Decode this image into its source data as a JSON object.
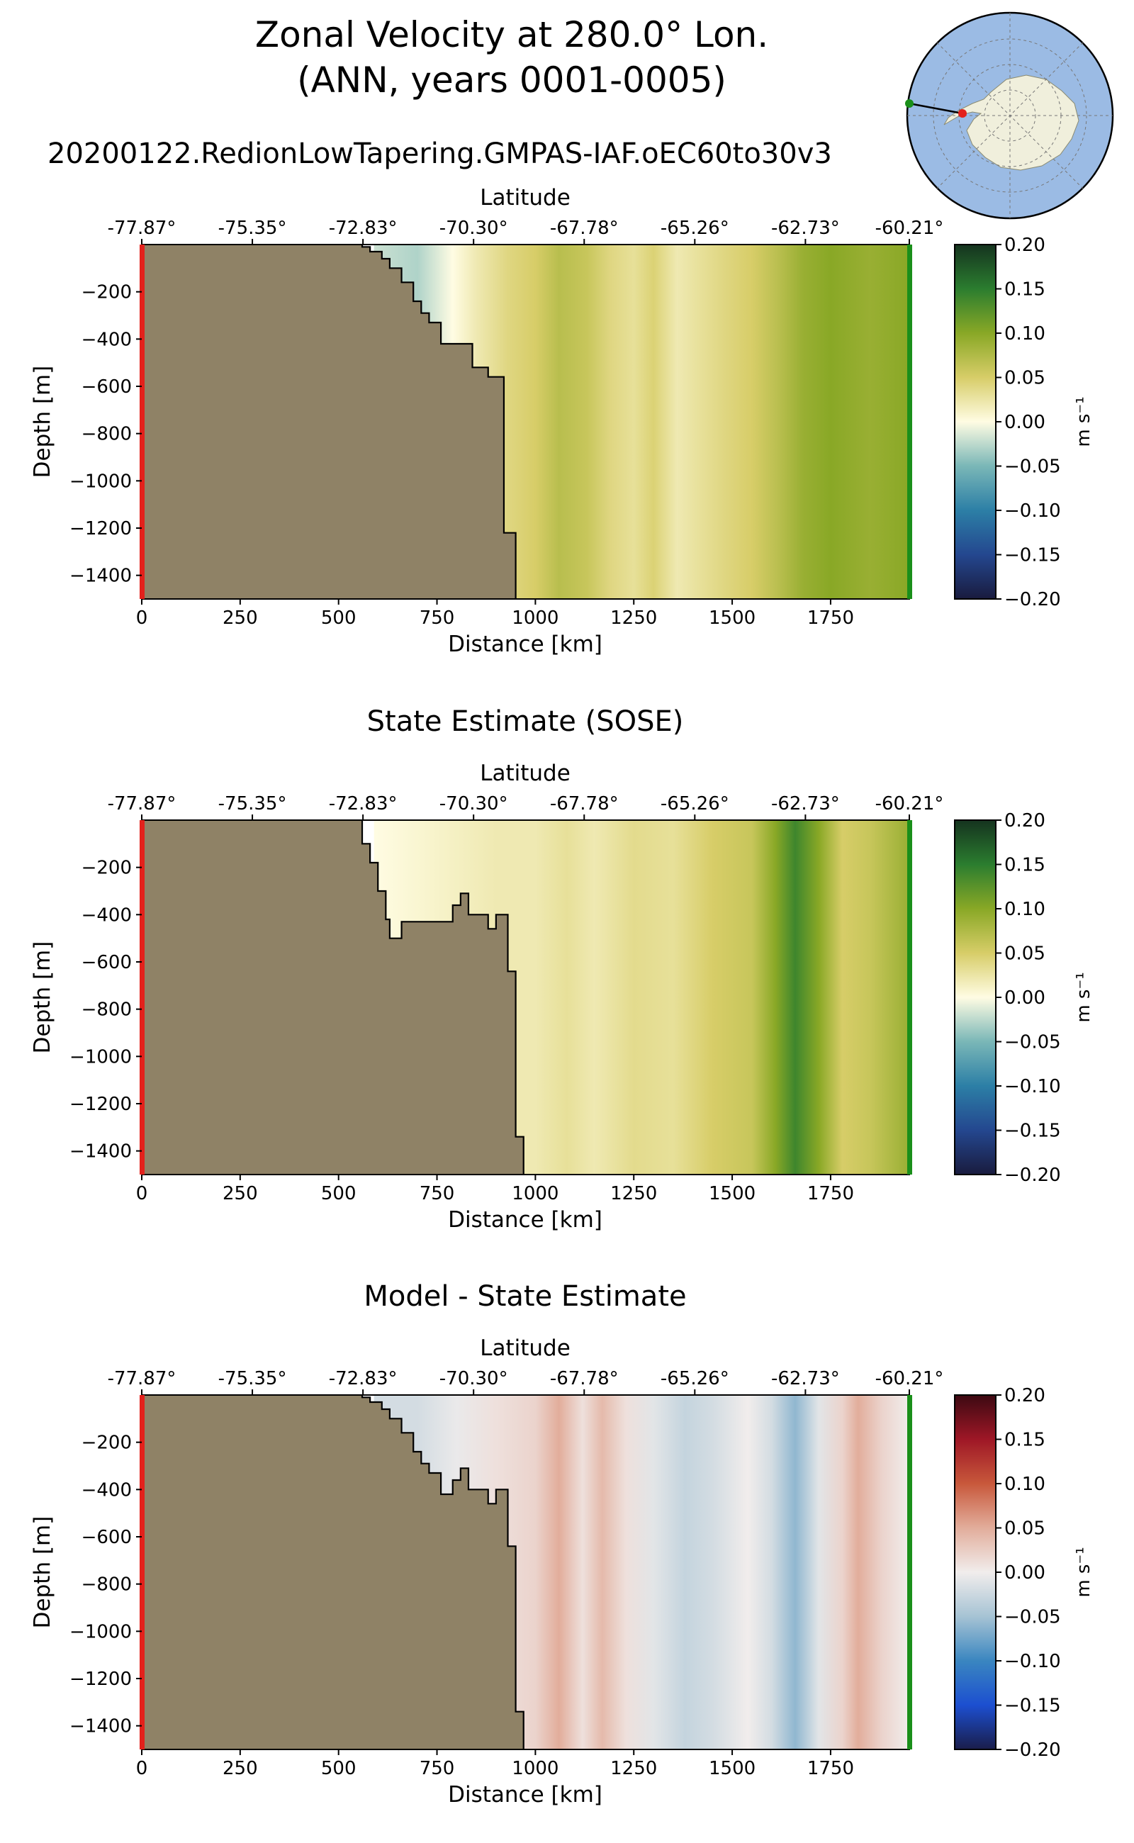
{
  "figure": {
    "title_line1": "Zonal Velocity at 280.0° Lon.",
    "title_line2": "(ANN, years 0001-0005)",
    "run_name": "20200122.RedionLowTapering.GMPAS-IAF.oEC60to30v3"
  },
  "colors": {
    "land": "#8f8266",
    "start_marker": "#e3211c",
    "end_marker": "#1a8f1a",
    "ocean": "#9bbbe4",
    "antarctica": "#f0efdc"
  },
  "chart_data": [
    {
      "type": "heatmap",
      "panel_title": "",
      "xlabel": "Distance [km]",
      "ylabel": "Depth [m]",
      "top_xlabel": "Latitude",
      "xlim": [
        0,
        1950
      ],
      "ylim": [
        -1500,
        0
      ],
      "x_ticks": [
        0,
        250,
        500,
        750,
        1000,
        1250,
        1500,
        1750
      ],
      "y_ticks": [
        -200,
        -400,
        -600,
        -800,
        -1000,
        -1200,
        -1400
      ],
      "lat_tick_distances": [
        0,
        281,
        562,
        843,
        1124,
        1405,
        1686,
        1950
      ],
      "lat_tick_labels": [
        "-77.87°",
        "-75.35°",
        "-72.83°",
        "-70.30°",
        "-67.78°",
        "-65.26°",
        "-62.73°",
        "-60.21°"
      ],
      "colormap": "speed",
      "colorbar_label": "m s⁻¹",
      "colorbar_ticks": [
        "0.20",
        "0.15",
        "0.10",
        "0.05",
        "0.00",
        "−0.05",
        "−0.10",
        "−0.15",
        "−0.20"
      ],
      "clim": [
        -0.2,
        0.2
      ],
      "bathymetry": [
        [
          560,
          0
        ],
        [
          560,
          10
        ],
        [
          580,
          10
        ],
        [
          580,
          30
        ],
        [
          610,
          30
        ],
        [
          610,
          60
        ],
        [
          630,
          60
        ],
        [
          630,
          100
        ],
        [
          660,
          100
        ],
        [
          660,
          160
        ],
        [
          690,
          160
        ],
        [
          690,
          240
        ],
        [
          710,
          240
        ],
        [
          710,
          290
        ],
        [
          730,
          290
        ],
        [
          730,
          330
        ],
        [
          760,
          330
        ],
        [
          760,
          420
        ],
        [
          840,
          420
        ],
        [
          840,
          520
        ],
        [
          880,
          520
        ],
        [
          880,
          560
        ],
        [
          920,
          560
        ],
        [
          920,
          1220
        ],
        [
          950,
          1220
        ],
        [
          950,
          1500
        ]
      ],
      "velocity_profile": [
        {
          "x": 590,
          "v": -0.02
        },
        {
          "x": 700,
          "v": -0.03
        },
        {
          "x": 790,
          "v": 0.0
        },
        {
          "x": 850,
          "v": 0.02
        },
        {
          "x": 930,
          "v": 0.04
        },
        {
          "x": 1000,
          "v": 0.05
        },
        {
          "x": 1060,
          "v": 0.07
        },
        {
          "x": 1130,
          "v": 0.06
        },
        {
          "x": 1190,
          "v": 0.04
        },
        {
          "x": 1250,
          "v": 0.03
        },
        {
          "x": 1300,
          "v": 0.045
        },
        {
          "x": 1360,
          "v": 0.02
        },
        {
          "x": 1420,
          "v": 0.03
        },
        {
          "x": 1480,
          "v": 0.04
        },
        {
          "x": 1550,
          "v": 0.05
        },
        {
          "x": 1620,
          "v": 0.07
        },
        {
          "x": 1680,
          "v": 0.09
        },
        {
          "x": 1750,
          "v": 0.1
        },
        {
          "x": 1850,
          "v": 0.09
        },
        {
          "x": 1950,
          "v": 0.1
        }
      ]
    },
    {
      "type": "heatmap",
      "panel_title": "State Estimate (SOSE)",
      "xlabel": "Distance [km]",
      "ylabel": "Depth [m]",
      "top_xlabel": "Latitude",
      "xlim": [
        0,
        1950
      ],
      "ylim": [
        -1500,
        0
      ],
      "x_ticks": [
        0,
        250,
        500,
        750,
        1000,
        1250,
        1500,
        1750
      ],
      "y_ticks": [
        -200,
        -400,
        -600,
        -800,
        -1000,
        -1200,
        -1400
      ],
      "lat_tick_distances": [
        0,
        281,
        562,
        843,
        1124,
        1405,
        1686,
        1950
      ],
      "lat_tick_labels": [
        "-77.87°",
        "-75.35°",
        "-72.83°",
        "-70.30°",
        "-67.78°",
        "-65.26°",
        "-62.73°",
        "-60.21°"
      ],
      "colormap": "speed",
      "colorbar_label": "m s⁻¹",
      "colorbar_ticks": [
        "0.20",
        "0.15",
        "0.10",
        "0.05",
        "0.00",
        "−0.05",
        "−0.10",
        "−0.15",
        "−0.20"
      ],
      "clim": [
        -0.2,
        0.2
      ],
      "bathymetry": [
        [
          560,
          0
        ],
        [
          560,
          100
        ],
        [
          580,
          100
        ],
        [
          580,
          180
        ],
        [
          600,
          180
        ],
        [
          600,
          300
        ],
        [
          620,
          300
        ],
        [
          620,
          420
        ],
        [
          630,
          420
        ],
        [
          630,
          500
        ],
        [
          660,
          500
        ],
        [
          660,
          430
        ],
        [
          790,
          430
        ],
        [
          790,
          360
        ],
        [
          810,
          360
        ],
        [
          810,
          310
        ],
        [
          830,
          310
        ],
        [
          830,
          400
        ],
        [
          880,
          400
        ],
        [
          880,
          460
        ],
        [
          900,
          460
        ],
        [
          900,
          400
        ],
        [
          930,
          400
        ],
        [
          930,
          640
        ],
        [
          950,
          640
        ],
        [
          950,
          1340
        ],
        [
          970,
          1340
        ],
        [
          970,
          1500
        ]
      ],
      "velocity_profile": [
        {
          "x": 590,
          "v": 0.0
        },
        {
          "x": 750,
          "v": 0.01
        },
        {
          "x": 900,
          "v": 0.02
        },
        {
          "x": 1000,
          "v": 0.02
        },
        {
          "x": 1080,
          "v": 0.03
        },
        {
          "x": 1150,
          "v": 0.02
        },
        {
          "x": 1250,
          "v": 0.035
        },
        {
          "x": 1350,
          "v": 0.03
        },
        {
          "x": 1450,
          "v": 0.05
        },
        {
          "x": 1550,
          "v": 0.06
        },
        {
          "x": 1610,
          "v": 0.1
        },
        {
          "x": 1660,
          "v": 0.14
        },
        {
          "x": 1720,
          "v": 0.1
        },
        {
          "x": 1780,
          "v": 0.05
        },
        {
          "x": 1850,
          "v": 0.06
        },
        {
          "x": 1950,
          "v": 0.09
        }
      ]
    },
    {
      "type": "heatmap",
      "panel_title": "Model - State Estimate",
      "xlabel": "Distance [km]",
      "ylabel": "Depth [m]",
      "top_xlabel": "Latitude",
      "xlim": [
        0,
        1950
      ],
      "ylim": [
        -1500,
        0
      ],
      "x_ticks": [
        0,
        250,
        500,
        750,
        1000,
        1250,
        1500,
        1750
      ],
      "y_ticks": [
        -200,
        -400,
        -600,
        -800,
        -1000,
        -1200,
        -1400
      ],
      "lat_tick_distances": [
        0,
        281,
        562,
        843,
        1124,
        1405,
        1686,
        1950
      ],
      "lat_tick_labels": [
        "-77.87°",
        "-75.35°",
        "-72.83°",
        "-70.30°",
        "-67.78°",
        "-65.26°",
        "-62.73°",
        "-60.21°"
      ],
      "colormap": "balance",
      "colorbar_label": "m s⁻¹",
      "colorbar_ticks": [
        "0.20",
        "0.15",
        "0.10",
        "0.05",
        "0.00",
        "−0.05",
        "−0.10",
        "−0.15",
        "−0.20"
      ],
      "clim": [
        -0.2,
        0.2
      ],
      "bathymetry": [
        [
          560,
          0
        ],
        [
          560,
          10
        ],
        [
          580,
          10
        ],
        [
          580,
          30
        ],
        [
          610,
          30
        ],
        [
          610,
          60
        ],
        [
          630,
          60
        ],
        [
          630,
          100
        ],
        [
          660,
          100
        ],
        [
          660,
          160
        ],
        [
          690,
          160
        ],
        [
          690,
          240
        ],
        [
          710,
          240
        ],
        [
          710,
          290
        ],
        [
          730,
          290
        ],
        [
          730,
          330
        ],
        [
          760,
          330
        ],
        [
          760,
          420
        ],
        [
          790,
          420
        ],
        [
          790,
          360
        ],
        [
          810,
          360
        ],
        [
          810,
          310
        ],
        [
          830,
          310
        ],
        [
          830,
          400
        ],
        [
          880,
          400
        ],
        [
          880,
          460
        ],
        [
          900,
          460
        ],
        [
          900,
          400
        ],
        [
          930,
          400
        ],
        [
          930,
          640
        ],
        [
          950,
          640
        ],
        [
          950,
          1340
        ],
        [
          970,
          1340
        ],
        [
          970,
          1500
        ]
      ],
      "velocity_profile": [
        {
          "x": 590,
          "v": -0.02
        },
        {
          "x": 700,
          "v": -0.02
        },
        {
          "x": 800,
          "v": -0.005
        },
        {
          "x": 900,
          "v": 0.01
        },
        {
          "x": 1000,
          "v": 0.02
        },
        {
          "x": 1060,
          "v": 0.05
        },
        {
          "x": 1120,
          "v": 0.01
        },
        {
          "x": 1170,
          "v": 0.04
        },
        {
          "x": 1230,
          "v": 0.01
        },
        {
          "x": 1300,
          "v": -0.01
        },
        {
          "x": 1380,
          "v": -0.03
        },
        {
          "x": 1450,
          "v": -0.02
        },
        {
          "x": 1540,
          "v": 0.0
        },
        {
          "x": 1600,
          "v": -0.02
        },
        {
          "x": 1660,
          "v": -0.06
        },
        {
          "x": 1720,
          "v": -0.01
        },
        {
          "x": 1780,
          "v": 0.02
        },
        {
          "x": 1820,
          "v": 0.05
        },
        {
          "x": 1880,
          "v": 0.02
        },
        {
          "x": 1950,
          "v": 0.0
        }
      ]
    }
  ]
}
